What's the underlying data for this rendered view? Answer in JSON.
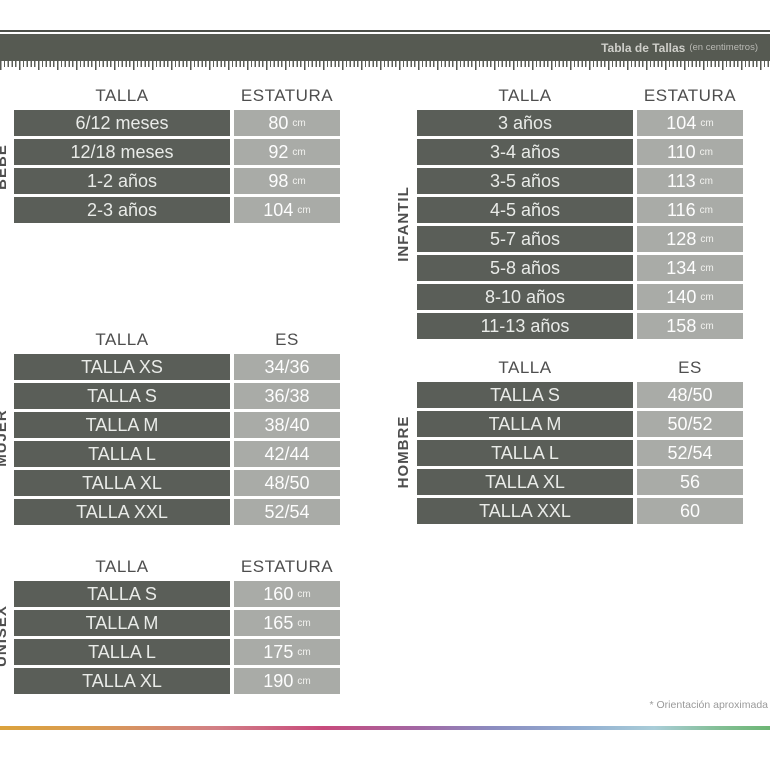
{
  "header": {
    "title": "Tabla de Tallas",
    "subtitle": "(en centimetros)"
  },
  "footnote": "* Orientación aproximada",
  "colors": {
    "header_bar": "#565a52",
    "dark_cell": "#5a5e58",
    "light_cell": "#a9aba7",
    "label_text": "#4e4e4e",
    "rainbow_stops": [
      "#dba23c",
      "#c84a7c",
      "#8b8cc0",
      "#93b0d2",
      "#6db674"
    ]
  },
  "tables": [
    {
      "id": "bebe",
      "label": "BEBE",
      "col1": "TALLA",
      "col2": "ESTATURA",
      "rows": [
        {
          "talla": "6/12 meses",
          "value": "80",
          "unit": "cm"
        },
        {
          "talla": "12/18 meses",
          "value": "92",
          "unit": "cm"
        },
        {
          "talla": "1-2 años",
          "value": "98",
          "unit": "cm"
        },
        {
          "talla": "2-3 años",
          "value": "104",
          "unit": "cm"
        }
      ]
    },
    {
      "id": "infantil",
      "label": "INFANTIL",
      "col1": "TALLA",
      "col2": "ESTATURA",
      "rows": [
        {
          "talla": "3 años",
          "value": "104",
          "unit": "cm"
        },
        {
          "talla": "3-4 años",
          "value": "110",
          "unit": "cm"
        },
        {
          "talla": "3-5 años",
          "value": "113",
          "unit": "cm"
        },
        {
          "talla": "4-5 años",
          "value": "116",
          "unit": "cm"
        },
        {
          "talla": "5-7 años",
          "value": "128",
          "unit": "cm"
        },
        {
          "talla": "5-8 años",
          "value": "134",
          "unit": "cm"
        },
        {
          "talla": "8-10 años",
          "value": "140",
          "unit": "cm"
        },
        {
          "talla": "11-13 años",
          "value": "158",
          "unit": "cm"
        }
      ]
    },
    {
      "id": "mujer",
      "label": "MUJER",
      "col1": "TALLA",
      "col2": "ES",
      "rows": [
        {
          "talla": "TALLA XS",
          "value": "34/36",
          "unit": ""
        },
        {
          "talla": "TALLA S",
          "value": "36/38",
          "unit": ""
        },
        {
          "talla": "TALLA M",
          "value": "38/40",
          "unit": ""
        },
        {
          "talla": "TALLA L",
          "value": "42/44",
          "unit": ""
        },
        {
          "talla": "TALLA XL",
          "value": "48/50",
          "unit": ""
        },
        {
          "talla": "TALLA XXL",
          "value": "52/54",
          "unit": ""
        }
      ]
    },
    {
      "id": "hombre",
      "label": "HOMBRE",
      "col1": "TALLA",
      "col2": "ES",
      "rows": [
        {
          "talla": "TALLA S",
          "value": "48/50",
          "unit": ""
        },
        {
          "talla": "TALLA M",
          "value": "50/52",
          "unit": ""
        },
        {
          "talla": "TALLA L",
          "value": "52/54",
          "unit": ""
        },
        {
          "talla": "TALLA XL",
          "value": "56",
          "unit": ""
        },
        {
          "talla": "TALLA XXL",
          "value": "60",
          "unit": ""
        }
      ]
    },
    {
      "id": "unisex",
      "label": "UNISEX",
      "col1": "TALLA",
      "col2": "ESTATURA",
      "rows": [
        {
          "talla": "TALLA S",
          "value": "160",
          "unit": "cm"
        },
        {
          "talla": "TALLA M",
          "value": "165",
          "unit": "cm"
        },
        {
          "talla": "TALLA L",
          "value": "175",
          "unit": "cm"
        },
        {
          "talla": "TALLA XL",
          "value": "190",
          "unit": "cm"
        }
      ]
    }
  ]
}
